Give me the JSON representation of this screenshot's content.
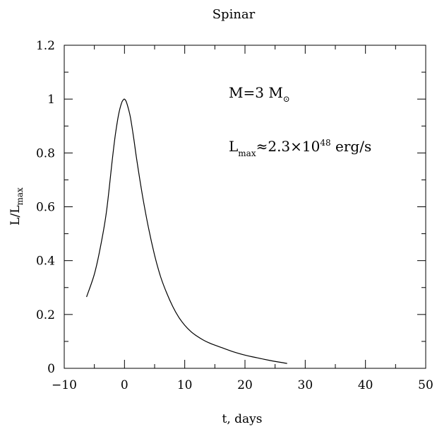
{
  "chart_data": {
    "type": "line",
    "title": "Spinar",
    "xlabel": "t, days",
    "ylabel": {
      "main": "L/L",
      "sub": "max"
    },
    "xlim": [
      -10,
      50
    ],
    "ylim": [
      0,
      1.2
    ],
    "x_ticks": [
      -10,
      0,
      10,
      20,
      30,
      40,
      50
    ],
    "x_tick_labels": [
      "−10",
      "0",
      "10",
      "20",
      "30",
      "40",
      "50"
    ],
    "y_ticks": [
      0,
      0.2,
      0.4,
      0.6,
      0.8,
      1.0,
      1.2
    ],
    "y_tick_labels": [
      "0",
      "0.2",
      "0.4",
      "0.6",
      "0.8",
      "1",
      "1.2"
    ],
    "grid": false,
    "annotations": {
      "mass": {
        "main": "M=3 M",
        "symbol": "⊙"
      },
      "lmax": {
        "main": "L",
        "sub": "max",
        "mid": "≈2.3×10",
        "sup": "48",
        "tail": " erg/s"
      }
    },
    "series": [
      {
        "x": [
          -6.3,
          -5,
          -4,
          -3,
          -2,
          -1.5,
          -1,
          -0.5,
          -0.2,
          0,
          0.3,
          0.7,
          1,
          1.5,
          2,
          3,
          4,
          5,
          6,
          7,
          8,
          9,
          10,
          11,
          12,
          13,
          14,
          15,
          16,
          18,
          20,
          22,
          24,
          26,
          27
        ],
        "y": [
          0.265,
          0.35,
          0.45,
          0.58,
          0.78,
          0.87,
          0.94,
          0.985,
          0.997,
          1.0,
          0.99,
          0.96,
          0.93,
          0.86,
          0.78,
          0.64,
          0.52,
          0.42,
          0.34,
          0.28,
          0.23,
          0.19,
          0.16,
          0.137,
          0.12,
          0.106,
          0.095,
          0.086,
          0.078,
          0.062,
          0.049,
          0.039,
          0.03,
          0.022,
          0.018
        ]
      }
    ]
  }
}
